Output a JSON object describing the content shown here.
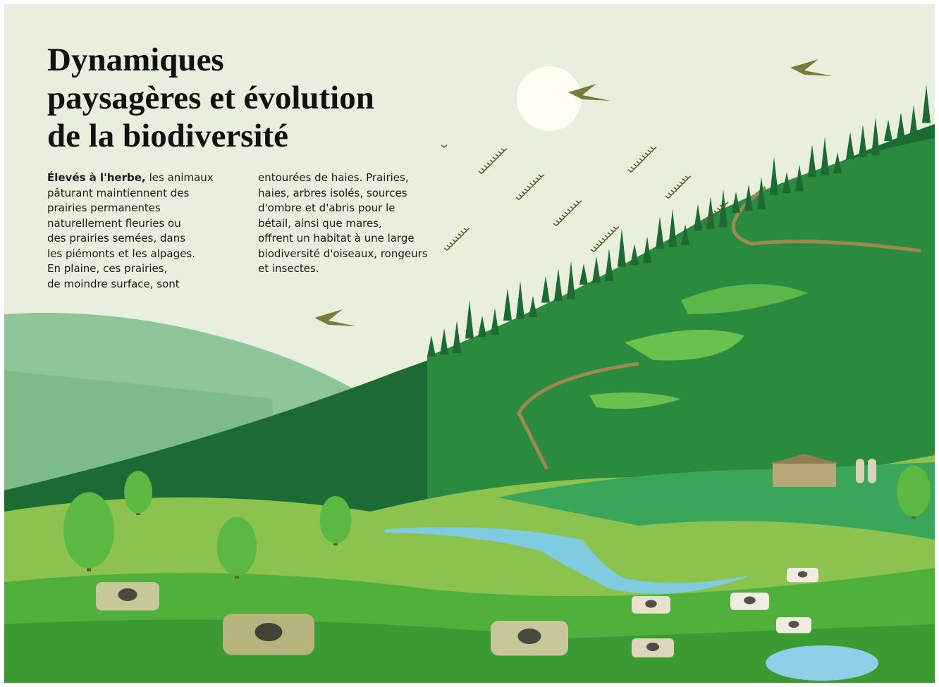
{
  "header": {
    "title_lines": [
      "Dynamiques",
      "paysagères et évolution",
      "de la biodiversité"
    ]
  },
  "columns": [
    {
      "lead": "Élevés à l'herbe,",
      "lines": [
        "les animaux",
        "pâturant maintiennent des",
        "prairies permanentes",
        "naturellement fleuries ou",
        "des prairies semées, dans",
        "les piémonts et les alpages.",
        "En plaine, ces prairies,",
        "de moindre surface, sont"
      ]
    },
    {
      "lines": [
        "entourées de haies. Prairies,",
        "haies, arbres isolés, sources",
        "d'ombre et d'abris pour le",
        "bétail, ainsi que mares,",
        "offrent un habitat à une large",
        "biodiversité d'oiseaux, rongeurs",
        "et insectes."
      ]
    }
  ]
}
